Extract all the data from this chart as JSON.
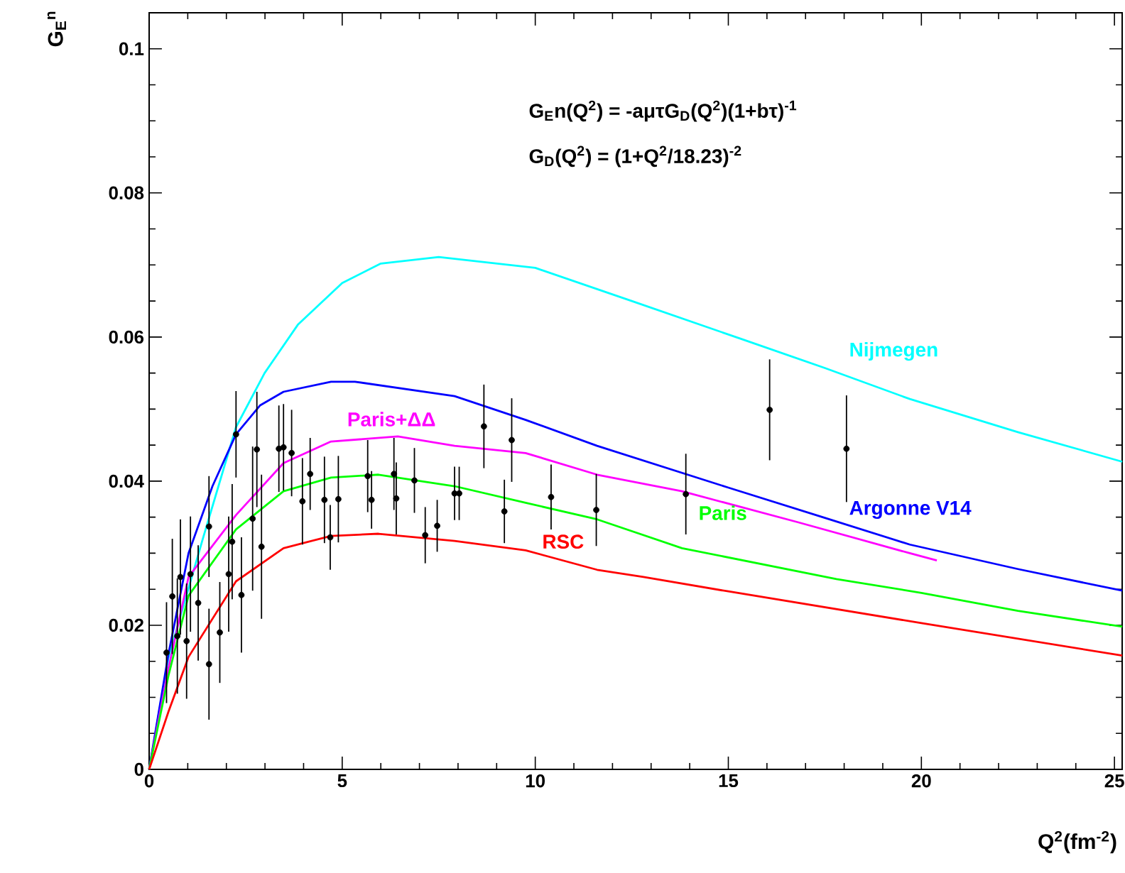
{
  "chart_data": {
    "type": "line",
    "xlabel": "Q$^{2}$(fm$^{-2}$)",
    "ylabel": "G$_{E}$$^{n}$",
    "annotations": [
      "G$_{E}$n(Q$^{2}$) = -aμτG$_{D}$(Q$^{2}$)(1+bτ)$^{-1}$",
      "G$_{D}$(Q$^{2}$) = (1+Q$^{2}$/18.23)$^{-2}$"
    ],
    "xlim": [
      0,
      25.2
    ],
    "ylim": [
      0,
      0.105
    ],
    "xticks": [
      0,
      5,
      10,
      15,
      20,
      25
    ],
    "yticks": [
      0,
      0.02,
      0.04,
      0.06,
      0.08,
      0.1
    ],
    "grid": false,
    "series": [
      {
        "name": "Nijmegen",
        "color": "#00ffff",
        "x": [
          0,
          0.5,
          1.39,
          2.25,
          2.99,
          3.85,
          5,
          6,
          7.5,
          10,
          12.5,
          15.3,
          17.5,
          19.7,
          22.5,
          25.2
        ],
        "values": [
          0,
          0.0155,
          0.032,
          0.0475,
          0.055,
          0.0617,
          0.0675,
          0.0702,
          0.0711,
          0.0696,
          0.065,
          0.0598,
          0.0557,
          0.0514,
          0.0468,
          0.0427
        ]
      },
      {
        "name": "Argonne V14",
        "color": "#0000ff",
        "x": [
          0,
          0.5,
          1.02,
          1.64,
          2.25,
          2.87,
          3.48,
          4.71,
          5.33,
          7.91,
          9.75,
          11.6,
          15,
          17.5,
          19.7,
          22.5,
          25.2
        ],
        "values": [
          0,
          0.016,
          0.03,
          0.0393,
          0.0465,
          0.0505,
          0.0524,
          0.0538,
          0.0538,
          0.0518,
          0.0485,
          0.0449,
          0.0391,
          0.0349,
          0.0312,
          0.0278,
          0.0248
        ]
      },
      {
        "name": "Paris+ΔΔ",
        "color": "#ff00ff",
        "x": [
          0,
          0.5,
          1.02,
          2.25,
          3.48,
          4.71,
          6.44,
          7.91,
          9.75,
          11.6,
          13.8,
          16.8,
          19.7,
          20.4
        ],
        "values": [
          0,
          0.014,
          0.0267,
          0.0353,
          0.0425,
          0.0455,
          0.0462,
          0.0449,
          0.0439,
          0.0409,
          0.0386,
          0.0343,
          0.03,
          0.029
        ]
      },
      {
        "name": "Paris",
        "color": "#00ff00",
        "x": [
          0,
          0.5,
          1.02,
          2.25,
          3.48,
          4.71,
          5.94,
          7.91,
          9.75,
          11.6,
          13.8,
          17.8,
          20,
          22.5,
          25.2
        ],
        "values": [
          0,
          0.013,
          0.0241,
          0.0333,
          0.0386,
          0.0405,
          0.0409,
          0.0393,
          0.037,
          0.0347,
          0.0307,
          0.0264,
          0.0245,
          0.022,
          0.0198
        ]
      },
      {
        "name": "RSC",
        "color": "#ff0000",
        "x": [
          0,
          0.5,
          1.02,
          2.25,
          3.48,
          4.71,
          5.94,
          7.91,
          9.75,
          11.6,
          12.8,
          15,
          20,
          25.2
        ],
        "values": [
          0,
          0.008,
          0.0156,
          0.0261,
          0.0307,
          0.0324,
          0.0327,
          0.0317,
          0.0304,
          0.0277,
          0.0267,
          0.0247,
          0.0203,
          0.0158
        ]
      },
      {
        "type": "scatter",
        "color": "#000000",
        "x": [
          0.45,
          0.6,
          0.73,
          0.81,
          0.97,
          1.07,
          1.27,
          1.55,
          1.55,
          1.83,
          2.06,
          2.15,
          2.25,
          2.39,
          2.68,
          2.79,
          2.91,
          3.36,
          3.48,
          3.69,
          3.97,
          4.17,
          4.54,
          4.69,
          4.9,
          5.66,
          5.76,
          6.34,
          6.4,
          6.87,
          7.15,
          7.46,
          7.91,
          8.03,
          8.67,
          9.2,
          9.39,
          10.41,
          11.58,
          13.9,
          16.07,
          18.06
        ],
        "values": [
          0.0162,
          0.024,
          0.0185,
          0.0267,
          0.0178,
          0.0271,
          0.0231,
          0.0146,
          0.0337,
          0.019,
          0.0271,
          0.0316,
          0.0465,
          0.0242,
          0.0348,
          0.0444,
          0.0309,
          0.0445,
          0.0447,
          0.0439,
          0.0372,
          0.041,
          0.0374,
          0.0322,
          0.0375,
          0.0407,
          0.0374,
          0.041,
          0.0376,
          0.0401,
          0.0325,
          0.0338,
          0.0383,
          0.0383,
          0.0476,
          0.0358,
          0.0457,
          0.0378,
          0.036,
          0.0382,
          0.0499,
          0.0445
        ],
        "errors": [
          0.007,
          0.008,
          0.008,
          0.008,
          0.008,
          0.008,
          0.008,
          0.0077,
          0.007,
          0.007,
          0.008,
          0.008,
          0.006,
          0.008,
          0.01,
          0.008,
          0.01,
          0.006,
          0.006,
          0.006,
          0.006,
          0.005,
          0.006,
          0.0045,
          0.006,
          0.005,
          0.004,
          0.005,
          0.005,
          0.0045,
          0.0039,
          0.0036,
          0.0037,
          0.0037,
          0.0058,
          0.0044,
          0.0058,
          0.0045,
          0.005,
          0.0056,
          0.007,
          0.0074
        ]
      }
    ]
  }
}
